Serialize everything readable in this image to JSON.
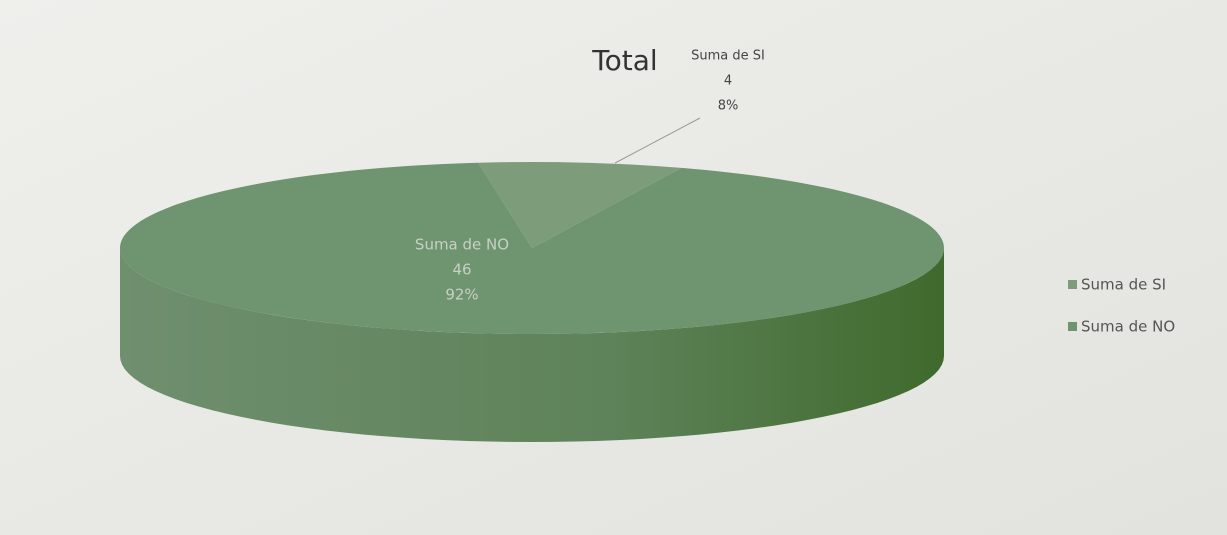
{
  "chart_data": {
    "type": "pie3d",
    "title": "Total",
    "categories": [
      "Suma de SI",
      "Suma de NO"
    ],
    "values": [
      4,
      46
    ],
    "percent_labels": [
      "8%",
      "92%"
    ],
    "colors": [
      "#7d9c7a",
      "#6f9470"
    ],
    "legend": "right"
  }
}
